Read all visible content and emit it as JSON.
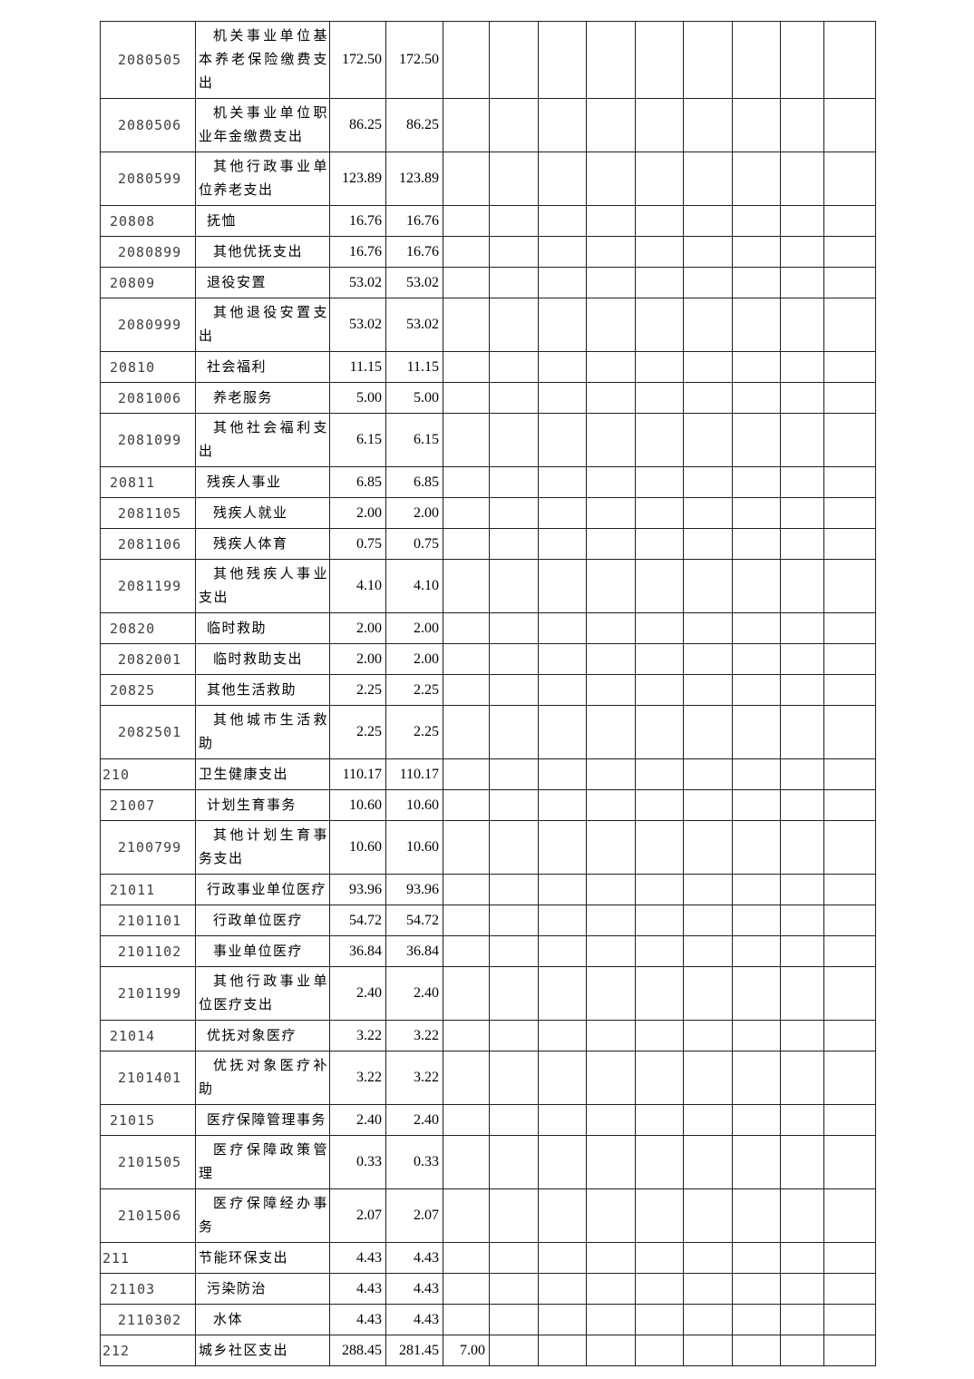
{
  "page": {
    "background": "#ffffff",
    "description": "Government budget expenditure table page (functional classification codes, continued page, no header row visible)"
  },
  "colors": {
    "grid": "#1f1f1f",
    "code_text": "#3f3f3f",
    "value_text": "#000000"
  },
  "table": {
    "value_column_count": 11,
    "rows": [
      {
        "code": "2080505",
        "level": 3,
        "name": "机关事业单位基本养老保险缴费支出",
        "values": [
          "172.50",
          "172.50"
        ]
      },
      {
        "code": "2080506",
        "level": 3,
        "name": "机关事业单位职业年金缴费支出",
        "values": [
          "86.25",
          "86.25"
        ]
      },
      {
        "code": "2080599",
        "level": 3,
        "name": "其他行政事业单位养老支出",
        "values": [
          "123.89",
          "123.89"
        ]
      },
      {
        "code": "20808",
        "level": 2,
        "name": "抚恤",
        "values": [
          "16.76",
          "16.76"
        ]
      },
      {
        "code": "2080899",
        "level": 3,
        "name": "其他优抚支出",
        "values": [
          "16.76",
          "16.76"
        ]
      },
      {
        "code": "20809",
        "level": 2,
        "name": "退役安置",
        "values": [
          "53.02",
          "53.02"
        ]
      },
      {
        "code": "2080999",
        "level": 3,
        "name": "其他退役安置支出",
        "values": [
          "53.02",
          "53.02"
        ]
      },
      {
        "code": "20810",
        "level": 2,
        "name": "社会福利",
        "values": [
          "11.15",
          "11.15"
        ]
      },
      {
        "code": "2081006",
        "level": 3,
        "name": "养老服务",
        "values": [
          "5.00",
          "5.00"
        ]
      },
      {
        "code": "2081099",
        "level": 3,
        "name": "其他社会福利支出",
        "values": [
          "6.15",
          "6.15"
        ]
      },
      {
        "code": "20811",
        "level": 2,
        "name": "残疾人事业",
        "values": [
          "6.85",
          "6.85"
        ]
      },
      {
        "code": "2081105",
        "level": 3,
        "name": "残疾人就业",
        "values": [
          "2.00",
          "2.00"
        ]
      },
      {
        "code": "2081106",
        "level": 3,
        "name": "残疾人体育",
        "values": [
          "0.75",
          "0.75"
        ]
      },
      {
        "code": "2081199",
        "level": 3,
        "name": "其他残疾人事业支出",
        "values": [
          "4.10",
          "4.10"
        ]
      },
      {
        "code": "20820",
        "level": 2,
        "name": "临时救助",
        "values": [
          "2.00",
          "2.00"
        ]
      },
      {
        "code": "2082001",
        "level": 3,
        "name": "临时救助支出",
        "values": [
          "2.00",
          "2.00"
        ]
      },
      {
        "code": "20825",
        "level": 2,
        "name": "其他生活救助",
        "values": [
          "2.25",
          "2.25"
        ]
      },
      {
        "code": "2082501",
        "level": 3,
        "name": "其他城市生活救助",
        "values": [
          "2.25",
          "2.25"
        ]
      },
      {
        "code": "210",
        "level": 1,
        "name": "卫生健康支出",
        "values": [
          "110.17",
          "110.17"
        ]
      },
      {
        "code": "21007",
        "level": 2,
        "name": "计划生育事务",
        "values": [
          "10.60",
          "10.60"
        ]
      },
      {
        "code": "2100799",
        "level": 3,
        "name": "其他计划生育事务支出",
        "values": [
          "10.60",
          "10.60"
        ]
      },
      {
        "code": "21011",
        "level": 2,
        "name": "行政事业单位医疗",
        "values": [
          "93.96",
          "93.96"
        ]
      },
      {
        "code": "2101101",
        "level": 3,
        "name": "行政单位医疗",
        "values": [
          "54.72",
          "54.72"
        ]
      },
      {
        "code": "2101102",
        "level": 3,
        "name": "事业单位医疗",
        "values": [
          "36.84",
          "36.84"
        ]
      },
      {
        "code": "2101199",
        "level": 3,
        "name": "其他行政事业单位医疗支出",
        "values": [
          "2.40",
          "2.40"
        ]
      },
      {
        "code": "21014",
        "level": 2,
        "name": "优抚对象医疗",
        "values": [
          "3.22",
          "3.22"
        ]
      },
      {
        "code": "2101401",
        "level": 3,
        "name": "优抚对象医疗补助",
        "values": [
          "3.22",
          "3.22"
        ]
      },
      {
        "code": "21015",
        "level": 2,
        "name": "医疗保障管理事务",
        "values": [
          "2.40",
          "2.40"
        ]
      },
      {
        "code": "2101505",
        "level": 3,
        "name": "医疗保障政策管理",
        "values": [
          "0.33",
          "0.33"
        ]
      },
      {
        "code": "2101506",
        "level": 3,
        "name": "医疗保障经办事务",
        "values": [
          "2.07",
          "2.07"
        ]
      },
      {
        "code": "211",
        "level": 1,
        "name": "节能环保支出",
        "values": [
          "4.43",
          "4.43"
        ]
      },
      {
        "code": "21103",
        "level": 2,
        "name": "污染防治",
        "values": [
          "4.43",
          "4.43"
        ]
      },
      {
        "code": "2110302",
        "level": 3,
        "name": "水体",
        "values": [
          "4.43",
          "4.43"
        ]
      },
      {
        "code": "212",
        "level": 1,
        "name": "城乡社区支出",
        "values": [
          "288.45",
          "281.45",
          "7.00"
        ]
      }
    ]
  }
}
